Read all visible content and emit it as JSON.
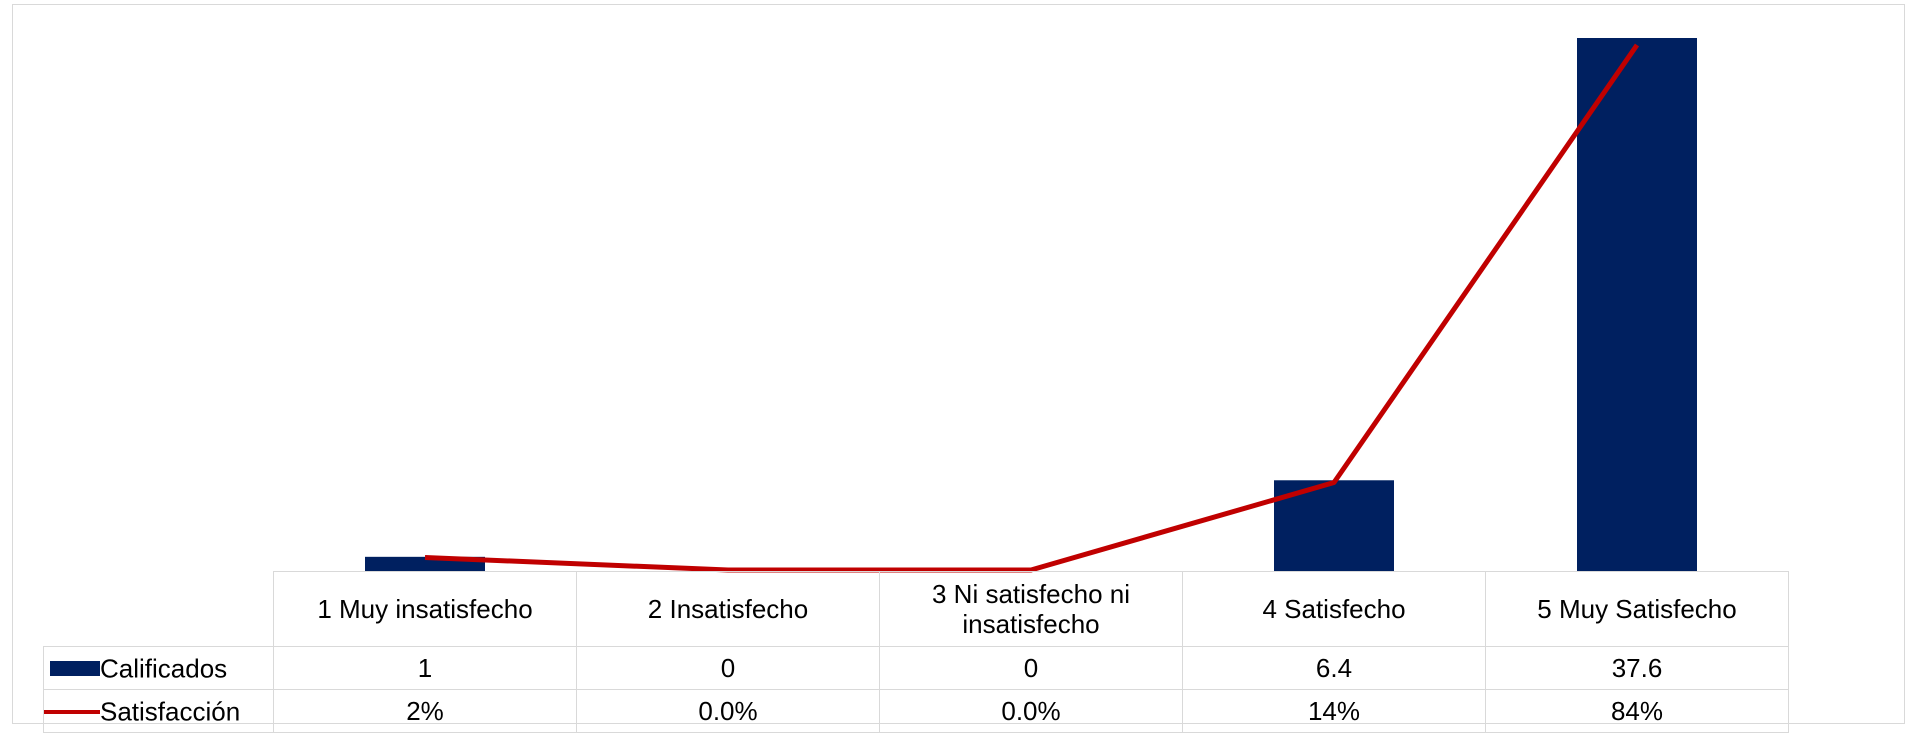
{
  "chart_data": {
    "type": "bar",
    "categories": [
      "1 Muy insatisfecho",
      "2 Insatisfecho",
      "3 Ni satisfecho ni insatisfecho",
      "4 Satisfecho",
      "5 Muy Satisfecho"
    ],
    "series": [
      {
        "name": "Calificados",
        "type": "bar",
        "color": "#002060",
        "values": [
          1,
          0,
          0,
          6.4,
          37.6
        ],
        "labels": [
          "1",
          "0",
          "0",
          "6.4",
          "37.6"
        ]
      },
      {
        "name": "Satisfacción",
        "type": "line",
        "color": "#c00000",
        "values": [
          2,
          0,
          0,
          14,
          84
        ],
        "labels": [
          "2%",
          "0.0%",
          "0.0%",
          "14%",
          "84%"
        ]
      }
    ],
    "data_table": true,
    "grid": false
  }
}
